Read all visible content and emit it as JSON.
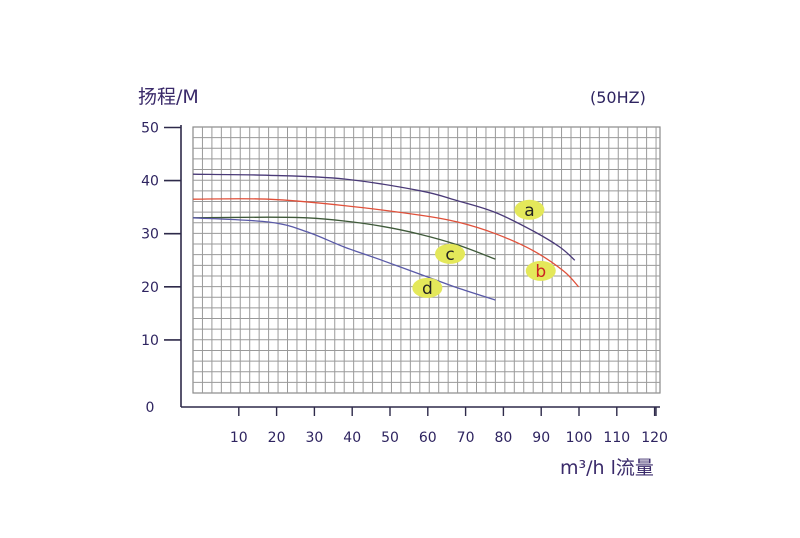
{
  "chart_data": {
    "type": "line",
    "ylabel": "扬程/M",
    "xlabel": "m³/h l流量",
    "annotation": "(50HZ)",
    "xlim": [
      0,
      130
    ],
    "ylim": [
      0,
      50
    ],
    "x_ticks": [
      "10",
      "20",
      "30",
      "40",
      "50",
      "60",
      "70",
      "80",
      "90",
      "100",
      "110",
      "120"
    ],
    "y_ticks": [
      "0",
      "10",
      "20",
      "30",
      "40",
      "50"
    ],
    "grid": true,
    "series": [
      {
        "name": "a",
        "color": "#4a3a78",
        "label_color": "#222222",
        "label_pos": [
          89,
          34.5
        ],
        "points": [
          [
            0,
            41.2
          ],
          [
            20,
            41.0
          ],
          [
            40,
            40.3
          ],
          [
            60,
            38.1
          ],
          [
            70,
            36.2
          ],
          [
            80,
            34.0
          ],
          [
            90,
            30.5
          ],
          [
            97,
            27.5
          ],
          [
            101,
            25.0
          ]
        ]
      },
      {
        "name": "b",
        "color": "#e0503a",
        "label_color": "#cc2222",
        "label_pos": [
          92,
          23.0
        ],
        "points": [
          [
            0,
            36.5
          ],
          [
            20,
            36.5
          ],
          [
            40,
            35.3
          ],
          [
            60,
            33.5
          ],
          [
            70,
            32.2
          ],
          [
            80,
            30.0
          ],
          [
            90,
            26.8
          ],
          [
            98,
            23.0
          ],
          [
            102,
            20.0
          ]
        ]
      },
      {
        "name": "c",
        "color": "#3f5a3a",
        "label_color": "#222222",
        "label_pos": [
          68,
          26.2
        ],
        "points": [
          [
            0,
            33.0
          ],
          [
            20,
            33.1
          ],
          [
            30,
            33.0
          ],
          [
            40,
            32.4
          ],
          [
            50,
            31.4
          ],
          [
            60,
            29.9
          ],
          [
            70,
            27.9
          ],
          [
            80,
            25.2
          ]
        ]
      },
      {
        "name": "d",
        "color": "#5a5aa8",
        "label_color": "#222222",
        "label_pos": [
          62,
          19.8
        ],
        "points": [
          [
            0,
            33.0
          ],
          [
            20,
            32.2
          ],
          [
            30,
            30.4
          ],
          [
            40,
            27.5
          ],
          [
            50,
            25.0
          ],
          [
            60,
            22.4
          ],
          [
            70,
            19.8
          ],
          [
            80,
            17.5
          ]
        ]
      }
    ]
  }
}
